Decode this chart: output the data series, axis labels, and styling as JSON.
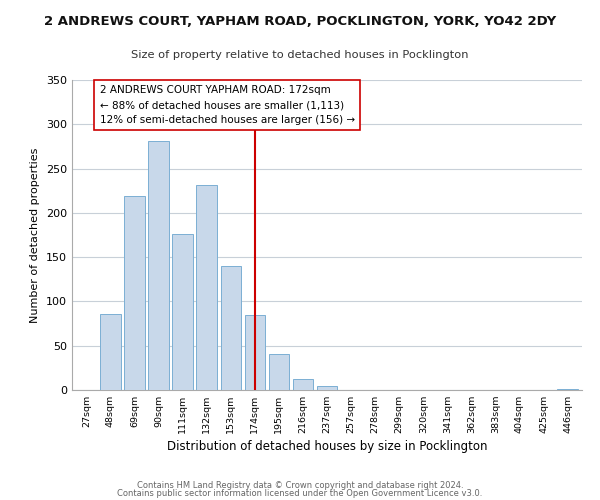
{
  "title": "2 ANDREWS COURT, YAPHAM ROAD, POCKLINGTON, YORK, YO42 2DY",
  "subtitle": "Size of property relative to detached houses in Pocklington",
  "xlabel": "Distribution of detached houses by size in Pocklington",
  "ylabel": "Number of detached properties",
  "bar_values": [
    0,
    86,
    219,
    281,
    176,
    232,
    140,
    85,
    41,
    12,
    4,
    0,
    0,
    0,
    0,
    0,
    0,
    0,
    0,
    0,
    1
  ],
  "bin_labels": [
    "27sqm",
    "48sqm",
    "69sqm",
    "90sqm",
    "111sqm",
    "132sqm",
    "153sqm",
    "174sqm",
    "195sqm",
    "216sqm",
    "237sqm",
    "257sqm",
    "278sqm",
    "299sqm",
    "320sqm",
    "341sqm",
    "362sqm",
    "383sqm",
    "404sqm",
    "425sqm",
    "446sqm"
  ],
  "bar_color": "#c8d8ea",
  "bar_edge_color": "#7bafd4",
  "vline_x": 7,
  "vline_color": "#cc0000",
  "annotation_lines": [
    "2 ANDREWS COURT YAPHAM ROAD: 172sqm",
    "← 88% of detached houses are smaller (1,113)",
    "12% of semi-detached houses are larger (156) →"
  ],
  "ylim": [
    0,
    350
  ],
  "yticks": [
    0,
    50,
    100,
    150,
    200,
    250,
    300,
    350
  ],
  "footnote1": "Contains HM Land Registry data © Crown copyright and database right 2024.",
  "footnote2": "Contains public sector information licensed under the Open Government Licence v3.0.",
  "bg_color": "#ffffff",
  "grid_color": "#c8d0d8"
}
